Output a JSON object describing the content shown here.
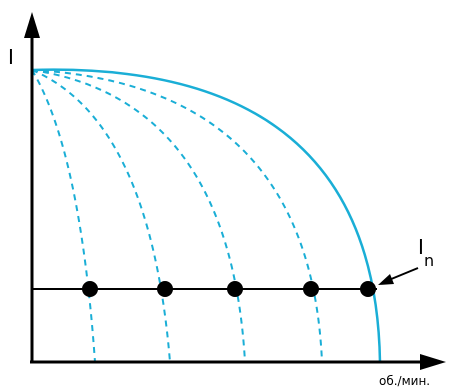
{
  "diagram": {
    "y_axis_label": "I",
    "x_axis_label": "об./мин.",
    "nominal_label_main": "I",
    "nominal_label_sub": "n",
    "colors": {
      "curves": "#1aaed6",
      "axes": "#000000",
      "points": "#000000"
    },
    "curves": {
      "solid_count": 1,
      "dashed_count": 4
    },
    "points_count": 5
  }
}
